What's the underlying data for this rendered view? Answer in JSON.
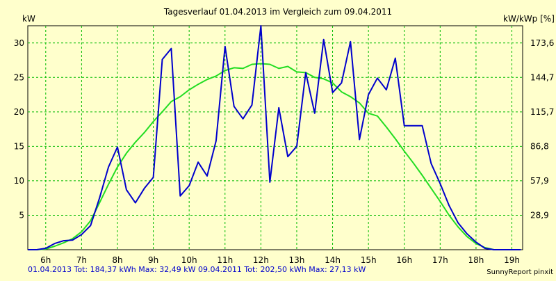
{
  "chart_data": {
    "type": "line",
    "title": "Tagesverlauf 01.04.2013 im Vergleich zum 09.04.2011",
    "ylabel": "kW",
    "ylabel_right": "kW/kWp [%]",
    "x_ticks": [
      "6h",
      "7h",
      "8h",
      "9h",
      "10h",
      "11h",
      "12h",
      "13h",
      "14h",
      "15h",
      "16h",
      "17h",
      "18h",
      "19h"
    ],
    "y_ticks": [
      "5",
      "10",
      "15",
      "20",
      "25",
      "30"
    ],
    "y_ticks_right": [
      "28,9",
      "57,9",
      "86,8",
      "115,7",
      "144,7",
      "173,6"
    ],
    "xlim": [
      5.5,
      19.3
    ],
    "ylim": [
      0,
      32.5
    ],
    "grid": true,
    "series": [
      {
        "name": "01.04.2013",
        "color": "#0000cc",
        "x": [
          5.5,
          5.75,
          6,
          6.25,
          6.5,
          6.75,
          7,
          7.25,
          7.5,
          7.75,
          8,
          8.25,
          8.5,
          8.75,
          9,
          9.25,
          9.5,
          9.75,
          10,
          10.25,
          10.5,
          10.75,
          11,
          11.25,
          11.5,
          11.75,
          12,
          12.25,
          12.5,
          12.75,
          13,
          13.25,
          13.5,
          13.75,
          14,
          14.25,
          14.5,
          14.75,
          15,
          15.25,
          15.5,
          15.75,
          16,
          16.25,
          16.5,
          16.75,
          17,
          17.25,
          17.5,
          17.75,
          18,
          18.25,
          18.5,
          18.75,
          19,
          19.25
        ],
        "y": [
          0,
          0,
          0.2,
          0.9,
          1.3,
          1.4,
          2.2,
          3.5,
          7.5,
          12,
          14.9,
          8.7,
          6.8,
          8.9,
          10.5,
          27.6,
          29.2,
          7.8,
          9.3,
          12.7,
          10.7,
          15.8,
          29.5,
          20.8,
          19,
          21,
          32.5,
          9.8,
          20.6,
          13.5,
          15,
          25.7,
          19.8,
          30.5,
          22.8,
          24.2,
          30.2,
          16,
          22.5,
          24.9,
          23.2,
          27.8,
          18,
          18,
          18,
          12.5,
          9.6,
          6.4,
          3.9,
          2.3,
          1.1,
          0.2,
          0,
          0,
          0,
          0
        ]
      },
      {
        "name": "09.04.2011",
        "color": "#22dd22",
        "x": [
          5.5,
          5.75,
          6,
          6.25,
          6.5,
          6.75,
          7,
          7.25,
          7.5,
          7.75,
          8,
          8.25,
          8.5,
          8.75,
          9,
          9.25,
          9.5,
          9.75,
          10,
          10.25,
          10.5,
          10.75,
          11,
          11.25,
          11.5,
          11.75,
          12,
          12.25,
          12.5,
          12.75,
          13,
          13.25,
          13.5,
          13.75,
          14,
          14.25,
          14.5,
          14.75,
          15,
          15.25,
          15.5,
          15.75,
          16,
          16.25,
          16.5,
          16.75,
          17,
          17.25,
          17.5,
          17.75,
          18,
          18.25,
          18.5,
          18.75,
          19,
          19.25
        ],
        "y": [
          0,
          0,
          0.1,
          0.5,
          1,
          1.6,
          2.6,
          4.2,
          6.8,
          9.5,
          12,
          14,
          15.6,
          17,
          18.6,
          20,
          21.5,
          22.2,
          23.2,
          24,
          24.7,
          25.2,
          26,
          26.4,
          26.3,
          26.9,
          27,
          26.9,
          26.3,
          26.6,
          25.8,
          25.7,
          25,
          24.8,
          24.2,
          22.9,
          22.2,
          21.3,
          19.8,
          19.4,
          17.8,
          16.1,
          14.3,
          12.6,
          10.8,
          8.9,
          7,
          5,
          3.3,
          1.9,
          0.9,
          0.3,
          0,
          0,
          0,
          0
        ]
      }
    ]
  },
  "footer": {
    "series1_text": "01.04.2013 Tot: 184,37 kWh Max: 32,49 kW",
    "series2_text": "09.04.2011 Tot: 202,50 kWh Max: 27,13 kW",
    "brand": "SunnyReport pinxit"
  }
}
